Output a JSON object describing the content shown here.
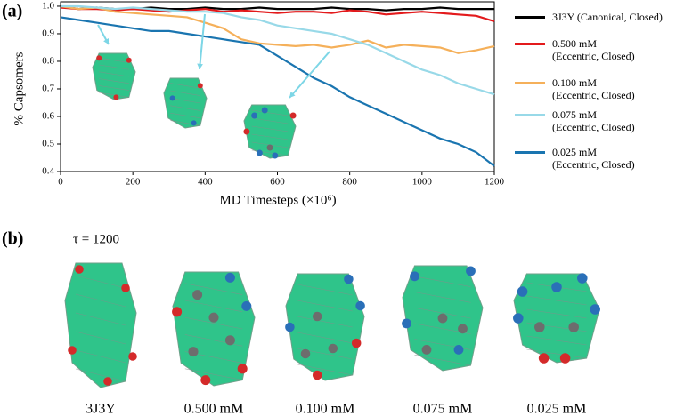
{
  "panel_a_label": "(a)",
  "chart_data": {
    "type": "line",
    "xlabel": "MD Timesteps (×10⁶)",
    "ylabel": "% Capsomers",
    "x": [
      0,
      50,
      100,
      150,
      200,
      250,
      300,
      350,
      400,
      450,
      500,
      550,
      600,
      650,
      700,
      750,
      800,
      850,
      900,
      950,
      1000,
      1050,
      1100,
      1150,
      1200
    ],
    "xlim": [
      0,
      1200
    ],
    "xticks": [
      0,
      200,
      400,
      600,
      800,
      1000,
      1200
    ],
    "ylim": [
      0.4,
      1.016
    ],
    "yticks": [
      0.4,
      0.5,
      0.6,
      0.7,
      0.8,
      0.9,
      {
        "value": 1,
        "label": "1.0"
      }
    ],
    "grid": false,
    "legend": "outside-right",
    "series": [
      {
        "name": "3J3Y (Canonical, Closed)",
        "color": "#000000",
        "values": [
          1.0,
          0.99,
          0.995,
          0.99,
          0.99,
          0.995,
          0.99,
          0.99,
          0.995,
          0.99,
          0.99,
          0.995,
          0.99,
          0.99,
          0.99,
          0.995,
          0.99,
          0.99,
          0.985,
          0.99,
          0.99,
          0.995,
          0.99,
          0.99,
          0.99
        ]
      },
      {
        "name": "0.500 mM\n(Eccentric, Closed)",
        "color": "#e31a1c",
        "values": [
          0.995,
          0.99,
          0.99,
          0.985,
          0.99,
          0.985,
          0.98,
          0.985,
          0.99,
          0.98,
          0.985,
          0.98,
          0.975,
          0.98,
          0.98,
          0.975,
          0.985,
          0.98,
          0.97,
          0.975,
          0.98,
          0.975,
          0.97,
          0.965,
          0.945
        ]
      },
      {
        "name": "0.100 mM\n(Eccentric, Closed)",
        "color": "#f5b05a",
        "values": [
          1.0,
          0.99,
          0.995,
          0.98,
          0.975,
          0.97,
          0.965,
          0.96,
          0.94,
          0.92,
          0.88,
          0.865,
          0.86,
          0.855,
          0.86,
          0.85,
          0.86,
          0.875,
          0.85,
          0.86,
          0.855,
          0.85,
          0.83,
          0.84,
          0.855
        ]
      },
      {
        "name": "0.075 mM\n(Eccentric, Closed)",
        "color": "#98d9e8",
        "values": [
          1.0,
          1.0,
          0.995,
          0.99,
          0.995,
          0.99,
          0.985,
          0.98,
          0.98,
          0.975,
          0.96,
          0.95,
          0.93,
          0.92,
          0.91,
          0.9,
          0.88,
          0.86,
          0.83,
          0.8,
          0.77,
          0.75,
          0.72,
          0.7,
          0.68
        ]
      },
      {
        "name": "0.025 mM\n(Eccentric, Closed)",
        "color": "#1a75b0",
        "values": [
          0.96,
          0.95,
          0.94,
          0.93,
          0.92,
          0.91,
          0.91,
          0.9,
          0.89,
          0.88,
          0.87,
          0.86,
          0.82,
          0.78,
          0.74,
          0.71,
          0.67,
          0.64,
          0.61,
          0.58,
          0.55,
          0.52,
          0.5,
          0.47,
          0.42
        ]
      }
    ]
  },
  "panel_b": {
    "label": "(b)",
    "subtitle": "τ = 1200",
    "captions": [
      "3J3Y",
      "0.500 mM",
      "0.100 mM",
      "0.075 mM",
      "0.025 mM"
    ]
  }
}
